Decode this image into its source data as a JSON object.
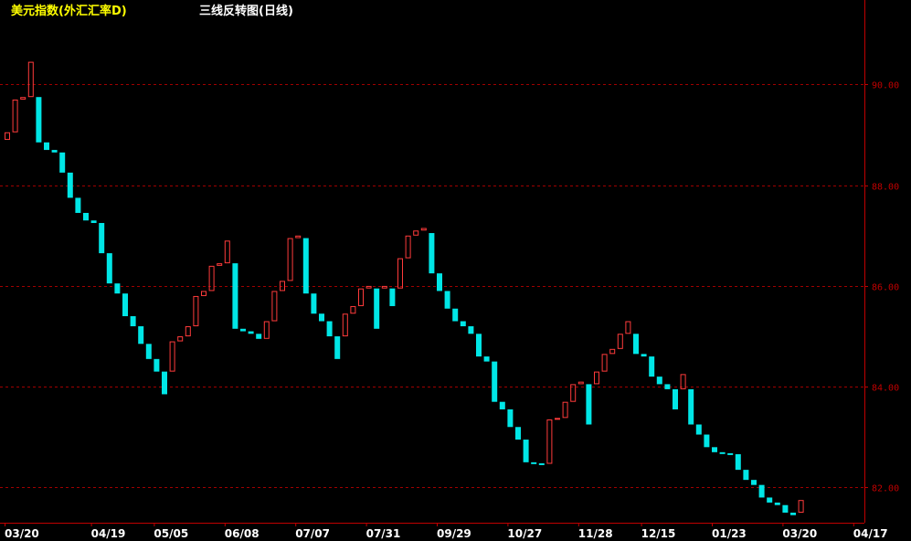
{
  "header": {
    "instrument": "美元指数(外汇汇率D)",
    "indicator": "三线反转图(日线)"
  },
  "colors": {
    "background": "#000000",
    "up": "#ff3b3b",
    "down": "#00e6e6",
    "axis": "#c00000",
    "grid": "#a00000",
    "ytick_text": "#c00000",
    "xtick_text": "#ffffff",
    "instrument_text": "#ffff00",
    "indicator_text": "#ffffff"
  },
  "chart_data": {
    "type": "bar",
    "title": "三线反转图(日线)",
    "ylim": [
      81.3,
      91.35
    ],
    "yticks": [
      82.0,
      84.0,
      86.0,
      88.0,
      90.0
    ],
    "ytick_labels": [
      "82.00",
      "84.00",
      "86.00",
      "88.00",
      "90.00"
    ],
    "grid": true,
    "xtick_labels": [
      "03/20",
      "04/19",
      "05/05",
      "06/08",
      "07/07",
      "07/31",
      "09/29",
      "10/27",
      "11/28",
      "12/15",
      "01/23",
      "03/20",
      "04/17"
    ],
    "xtick_bar_index": [
      0,
      11,
      19,
      28,
      37,
      46,
      55,
      64,
      73,
      81,
      90,
      99,
      108
    ],
    "bricks": [
      {
        "dir": "up",
        "open": 88.9,
        "close": 89.05
      },
      {
        "dir": "up",
        "open": 89.05,
        "close": 89.7
      },
      {
        "dir": "up",
        "open": 89.7,
        "close": 89.75
      },
      {
        "dir": "up",
        "open": 89.75,
        "close": 90.45
      },
      {
        "dir": "down",
        "open": 89.75,
        "close": 88.85
      },
      {
        "dir": "down",
        "open": 88.85,
        "close": 88.7
      },
      {
        "dir": "down",
        "open": 88.7,
        "close": 88.65
      },
      {
        "dir": "down",
        "open": 88.65,
        "close": 88.25
      },
      {
        "dir": "down",
        "open": 88.25,
        "close": 87.75
      },
      {
        "dir": "down",
        "open": 87.75,
        "close": 87.45
      },
      {
        "dir": "down",
        "open": 87.45,
        "close": 87.3
      },
      {
        "dir": "down",
        "open": 87.3,
        "close": 87.25
      },
      {
        "dir": "down",
        "open": 87.25,
        "close": 86.65
      },
      {
        "dir": "down",
        "open": 86.65,
        "close": 86.05
      },
      {
        "dir": "down",
        "open": 86.05,
        "close": 85.85
      },
      {
        "dir": "down",
        "open": 85.85,
        "close": 85.4
      },
      {
        "dir": "down",
        "open": 85.4,
        "close": 85.2
      },
      {
        "dir": "down",
        "open": 85.2,
        "close": 84.85
      },
      {
        "dir": "down",
        "open": 84.85,
        "close": 84.55
      },
      {
        "dir": "down",
        "open": 84.55,
        "close": 84.3
      },
      {
        "dir": "down",
        "open": 84.3,
        "close": 83.85
      },
      {
        "dir": "up",
        "open": 84.3,
        "close": 84.9
      },
      {
        "dir": "up",
        "open": 84.9,
        "close": 85.0
      },
      {
        "dir": "up",
        "open": 85.0,
        "close": 85.2
      },
      {
        "dir": "up",
        "open": 85.2,
        "close": 85.8
      },
      {
        "dir": "up",
        "open": 85.8,
        "close": 85.9
      },
      {
        "dir": "up",
        "open": 85.9,
        "close": 86.4
      },
      {
        "dir": "up",
        "open": 86.4,
        "close": 86.45
      },
      {
        "dir": "up",
        "open": 86.45,
        "close": 86.9
      },
      {
        "dir": "down",
        "open": 86.45,
        "close": 85.15
      },
      {
        "dir": "down",
        "open": 85.15,
        "close": 85.1
      },
      {
        "dir": "down",
        "open": 85.1,
        "close": 85.05
      },
      {
        "dir": "down",
        "open": 85.05,
        "close": 84.95
      },
      {
        "dir": "up",
        "open": 84.95,
        "close": 85.3
      },
      {
        "dir": "up",
        "open": 85.3,
        "close": 85.9
      },
      {
        "dir": "up",
        "open": 85.9,
        "close": 86.1
      },
      {
        "dir": "up",
        "open": 86.1,
        "close": 86.95
      },
      {
        "dir": "up",
        "open": 86.95,
        "close": 87.0
      },
      {
        "dir": "down",
        "open": 86.95,
        "close": 85.85
      },
      {
        "dir": "down",
        "open": 85.85,
        "close": 85.45
      },
      {
        "dir": "down",
        "open": 85.45,
        "close": 85.3
      },
      {
        "dir": "down",
        "open": 85.3,
        "close": 85.0
      },
      {
        "dir": "down",
        "open": 85.0,
        "close": 84.55
      },
      {
        "dir": "up",
        "open": 85.0,
        "close": 85.45
      },
      {
        "dir": "up",
        "open": 85.45,
        "close": 85.6
      },
      {
        "dir": "up",
        "open": 85.6,
        "close": 85.95
      },
      {
        "dir": "up",
        "open": 85.95,
        "close": 86.0
      },
      {
        "dir": "down",
        "open": 85.95,
        "close": 85.15
      },
      {
        "dir": "up",
        "open": 85.95,
        "close": 86.0
      },
      {
        "dir": "down",
        "open": 85.95,
        "close": 85.6
      },
      {
        "dir": "up",
        "open": 85.95,
        "close": 86.55
      },
      {
        "dir": "up",
        "open": 86.55,
        "close": 87.0
      },
      {
        "dir": "up",
        "open": 87.0,
        "close": 87.1
      },
      {
        "dir": "up",
        "open": 87.1,
        "close": 87.15
      },
      {
        "dir": "down",
        "open": 87.05,
        "close": 86.25
      },
      {
        "dir": "down",
        "open": 86.25,
        "close": 85.9
      },
      {
        "dir": "down",
        "open": 85.9,
        "close": 85.55
      },
      {
        "dir": "down",
        "open": 85.55,
        "close": 85.3
      },
      {
        "dir": "down",
        "open": 85.3,
        "close": 85.2
      },
      {
        "dir": "down",
        "open": 85.2,
        "close": 85.05
      },
      {
        "dir": "down",
        "open": 85.05,
        "close": 84.6
      },
      {
        "dir": "down",
        "open": 84.6,
        "close": 84.5
      },
      {
        "dir": "down",
        "open": 84.5,
        "close": 83.7
      },
      {
        "dir": "down",
        "open": 83.7,
        "close": 83.55
      },
      {
        "dir": "down",
        "open": 83.55,
        "close": 83.2
      },
      {
        "dir": "down",
        "open": 83.2,
        "close": 82.95
      },
      {
        "dir": "down",
        "open": 82.95,
        "close": 82.5
      },
      {
        "dir": "down",
        "open": 82.5,
        "close": 82.48
      },
      {
        "dir": "down",
        "open": 82.48,
        "close": 82.47
      },
      {
        "dir": "up",
        "open": 82.47,
        "close": 83.35
      },
      {
        "dir": "up",
        "open": 83.35,
        "close": 83.38
      },
      {
        "dir": "up",
        "open": 83.38,
        "close": 83.7
      },
      {
        "dir": "up",
        "open": 83.7,
        "close": 84.05
      },
      {
        "dir": "up",
        "open": 84.05,
        "close": 84.1
      },
      {
        "dir": "down",
        "open": 84.05,
        "close": 83.25
      },
      {
        "dir": "up",
        "open": 84.05,
        "close": 84.3
      },
      {
        "dir": "up",
        "open": 84.3,
        "close": 84.65
      },
      {
        "dir": "up",
        "open": 84.65,
        "close": 84.75
      },
      {
        "dir": "up",
        "open": 84.75,
        "close": 85.05
      },
      {
        "dir": "up",
        "open": 85.05,
        "close": 85.3
      },
      {
        "dir": "down",
        "open": 85.05,
        "close": 84.65
      },
      {
        "dir": "down",
        "open": 84.65,
        "close": 84.6
      },
      {
        "dir": "down",
        "open": 84.6,
        "close": 84.2
      },
      {
        "dir": "down",
        "open": 84.2,
        "close": 84.05
      },
      {
        "dir": "down",
        "open": 84.05,
        "close": 83.95
      },
      {
        "dir": "down",
        "open": 83.95,
        "close": 83.55
      },
      {
        "dir": "up",
        "open": 83.95,
        "close": 84.25
      },
      {
        "dir": "down",
        "open": 83.95,
        "close": 83.25
      },
      {
        "dir": "down",
        "open": 83.25,
        "close": 83.05
      },
      {
        "dir": "down",
        "open": 83.05,
        "close": 82.8
      },
      {
        "dir": "down",
        "open": 82.8,
        "close": 82.7
      },
      {
        "dir": "down",
        "open": 82.7,
        "close": 82.68
      },
      {
        "dir": "down",
        "open": 82.68,
        "close": 82.66
      },
      {
        "dir": "down",
        "open": 82.66,
        "close": 82.35
      },
      {
        "dir": "down",
        "open": 82.35,
        "close": 82.15
      },
      {
        "dir": "down",
        "open": 82.15,
        "close": 82.05
      },
      {
        "dir": "down",
        "open": 82.05,
        "close": 81.8
      },
      {
        "dir": "down",
        "open": 81.8,
        "close": 81.7
      },
      {
        "dir": "down",
        "open": 81.7,
        "close": 81.65
      },
      {
        "dir": "down",
        "open": 81.65,
        "close": 81.5
      },
      {
        "dir": "down",
        "open": 81.5,
        "close": 81.45
      },
      {
        "dir": "up",
        "open": 81.5,
        "close": 81.75
      }
    ]
  }
}
